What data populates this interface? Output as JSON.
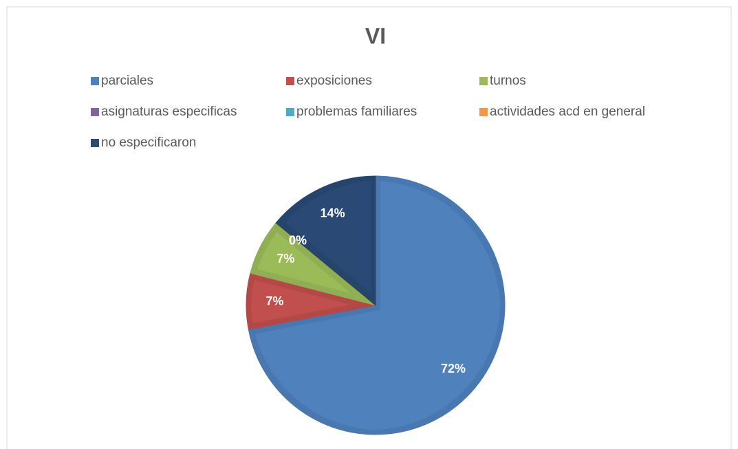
{
  "chart_data": {
    "type": "pie",
    "title": "VI",
    "categories": [
      "parciales",
      "exposiciones",
      "turnos",
      "asignaturas especificas",
      "problemas familiares",
      "actividades acd en general",
      "no especificaron"
    ],
    "values": [
      72,
      7,
      7,
      0,
      0,
      0,
      14
    ],
    "value_labels": [
      "72%",
      "7%",
      "7%",
      "0%",
      "0%",
      "0%",
      "14%"
    ],
    "colors": [
      "#4f81bd",
      "#c0504d",
      "#9bbb59",
      "#8064a2",
      "#4bacc6",
      "#f79646",
      "#2a4a74"
    ],
    "legend": "top"
  }
}
